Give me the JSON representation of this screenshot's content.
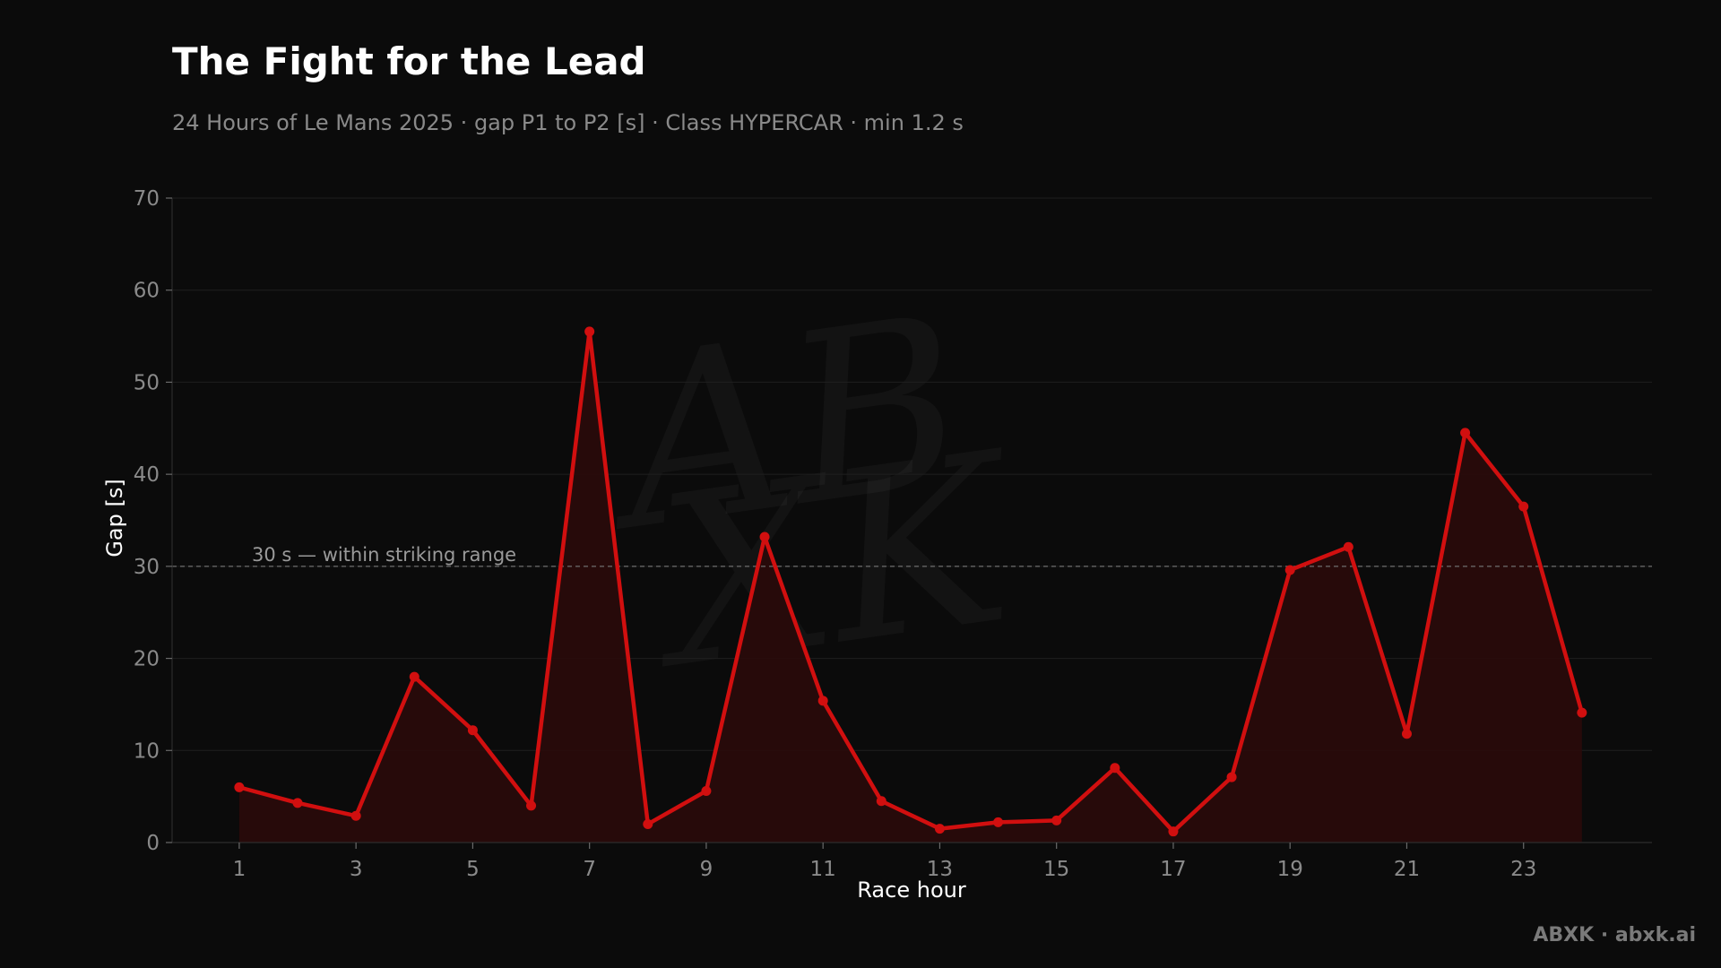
{
  "page": {
    "title": "The Fight for the Lead",
    "subtitle": "24 Hours of Le Mans 2025 · gap P1 to P2 [s] · Class HYPERCAR · min 1.2 s",
    "brand": "ABXK · abxk.ai",
    "watermark": "ABXK"
  },
  "colors": {
    "background": "#0b0b0b",
    "line": "#d10f0f",
    "area": "#2a0a0a",
    "grid": "#1f1f1f",
    "reference_line": "#6e6e6e",
    "tick_text": "#8a8a8a"
  },
  "chart_data": {
    "type": "line",
    "title": "The Fight for the Lead",
    "subtitle": "24 Hours of Le Mans 2025 · gap P1 to P2 [s] · Class HYPERCAR · min 1.2 s",
    "xlabel": "Race hour",
    "ylabel": "Gap [s]",
    "x": [
      1,
      2,
      3,
      4,
      5,
      6,
      7,
      8,
      9,
      10,
      11,
      12,
      13,
      14,
      15,
      16,
      17,
      18,
      19,
      20,
      21,
      22,
      23,
      24
    ],
    "series": [
      {
        "values": [
          6.0,
          4.3,
          2.9,
          18.0,
          12.2,
          4.0,
          55.5,
          2.0,
          5.6,
          33.2,
          15.4,
          4.5,
          1.5,
          2.2,
          2.4,
          8.1,
          1.2,
          7.1,
          29.6,
          32.1,
          11.8,
          44.5,
          36.5,
          14.1
        ]
      }
    ],
    "xticks": [
      1,
      3,
      5,
      7,
      9,
      11,
      13,
      15,
      17,
      19,
      21,
      23
    ],
    "yticks": [
      0,
      10,
      20,
      30,
      40,
      50,
      60,
      70
    ],
    "xlim": [
      -0.15,
      25.2
    ],
    "ylim": [
      0,
      70
    ],
    "grid": true,
    "area_fill": true,
    "reference_line": {
      "y": 30,
      "label": "30 s — within striking range"
    }
  }
}
